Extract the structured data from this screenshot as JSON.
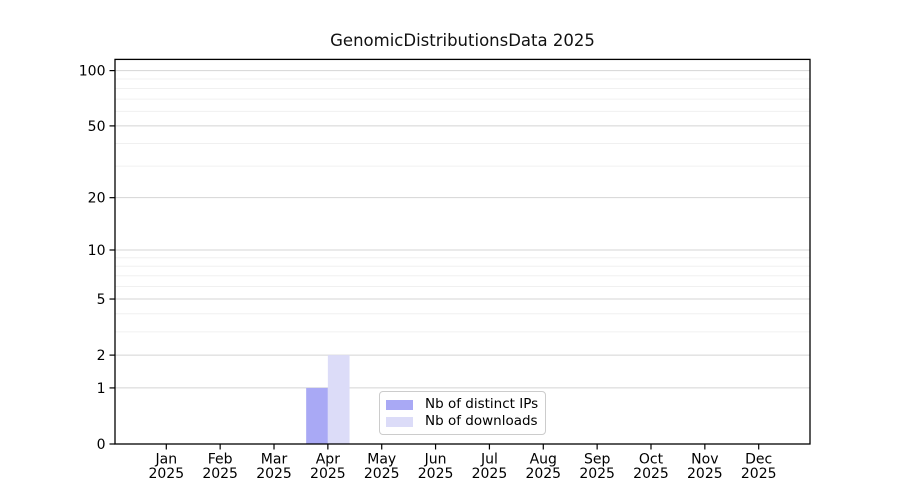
{
  "chart_data": {
    "type": "bar",
    "title": "GenomicDistributionsData 2025",
    "categories": [
      "Jan",
      "Feb",
      "Mar",
      "Apr",
      "May",
      "Jun",
      "Jul",
      "Aug",
      "Sep",
      "Oct",
      "Nov",
      "Dec"
    ],
    "category_year": "2025",
    "series": [
      {
        "name": "Nb of distinct IPs",
        "color": "#a9a9f5",
        "values": [
          0,
          0,
          0,
          1,
          0,
          0,
          0,
          0,
          0,
          0,
          0,
          0
        ]
      },
      {
        "name": "Nb of downloads",
        "color": "#dcdcf8",
        "values": [
          0,
          0,
          0,
          2,
          0,
          0,
          0,
          0,
          0,
          0,
          0,
          0
        ]
      }
    ],
    "xlabel": "",
    "ylabel": "",
    "yscale": "log1p",
    "ylim": [
      0,
      115
    ],
    "yticks_major": [
      0,
      1,
      2,
      5,
      10,
      20,
      50,
      100
    ],
    "yticks_minor": [
      3,
      4,
      6,
      7,
      8,
      9,
      30,
      40,
      60,
      70,
      80,
      90
    ],
    "grid": {
      "major_color": "#d4d4d4",
      "minor_color": "#f0f0f0"
    },
    "axis_color": "#000000",
    "text_color": "#000000",
    "legend": {
      "position": "lower center"
    }
  }
}
